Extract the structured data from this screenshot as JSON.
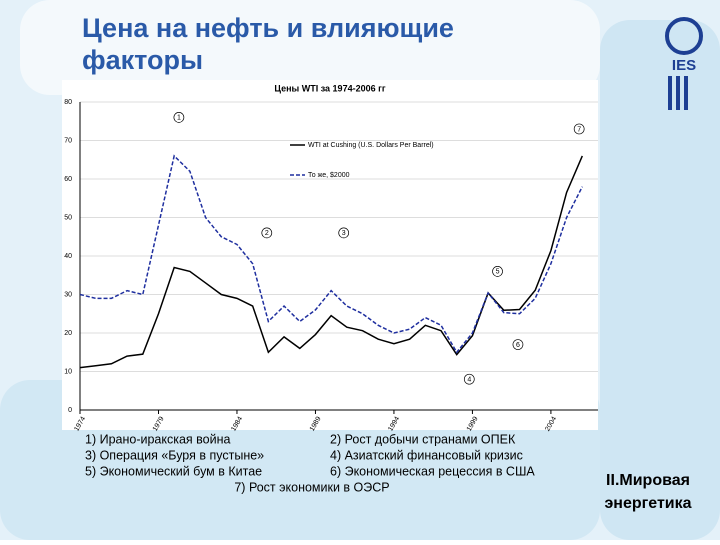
{
  "slide": {
    "title_lines": [
      "Цена на нефть и влияющие",
      "факторы"
    ],
    "logo": "IES",
    "side_lines": [
      "II.Мировая",
      "энергетика"
    ],
    "notes": [
      "1) Ирано-иракская война",
      "2) Рост добычи странами ОПЕК",
      "3) Операция «Буря в пустыне»",
      "4) Азиатский финансовый кризис",
      "5) Экономический бум в Китае",
      "6) Экономическая рецессия в США",
      "7) Рост экономики в ОЭСР"
    ]
  },
  "chart_data": {
    "type": "line",
    "title": "Цены WTI за 1974-2006 гг",
    "x": [
      1974,
      1975,
      1976,
      1977,
      1978,
      1979,
      1980,
      1981,
      1982,
      1983,
      1984,
      1985,
      1986,
      1987,
      1988,
      1989,
      1990,
      1991,
      1992,
      1993,
      1994,
      1995,
      1996,
      1997,
      1998,
      1999,
      2000,
      2001,
      2002,
      2003,
      2004,
      2005,
      2006
    ],
    "series": [
      {
        "name": "WTI at Cushing (U.S. Dollars Per Barrel)",
        "color": "#000000",
        "style": "solid",
        "values": [
          11,
          11.5,
          12,
          14,
          14.5,
          25,
          37,
          36,
          33,
          30,
          29,
          27,
          15,
          19,
          16,
          19.6,
          24.5,
          21.5,
          20.6,
          18.4,
          17.2,
          18.4,
          22,
          20.6,
          14.4,
          19.3,
          30.4,
          25.9,
          26.1,
          31.1,
          41.4,
          56.5,
          66
        ]
      },
      {
        "name": "То же, $2000",
        "color": "#1f2f9f",
        "style": "dashed",
        "values": [
          30,
          29,
          29,
          31,
          30,
          48,
          66,
          62,
          50,
          45,
          43,
          38,
          23,
          27,
          23,
          26,
          31,
          27,
          25,
          22,
          20,
          21,
          24,
          22,
          15,
          20,
          30.4,
          25.3,
          25,
          29,
          38,
          50,
          58
        ]
      }
    ],
    "xlim": [
      1974,
      2007
    ],
    "xticks": [
      1974,
      1979,
      1984,
      1989,
      1994,
      1999,
      2004
    ],
    "ylim": [
      0,
      80
    ],
    "yticks": [
      0,
      10,
      20,
      30,
      40,
      50,
      60,
      70,
      80
    ],
    "grid": true,
    "annotations": [
      {
        "label": "1",
        "x": 1980.3,
        "y": 76
      },
      {
        "label": "2",
        "x": 1985.9,
        "y": 46
      },
      {
        "label": "3",
        "x": 1990.8,
        "y": 46
      },
      {
        "label": "4",
        "x": 1998.8,
        "y": 8
      },
      {
        "label": "5",
        "x": 2000.6,
        "y": 36
      },
      {
        "label": "6",
        "x": 2001.9,
        "y": 17
      },
      {
        "label": "7",
        "x": 2005.8,
        "y": 73
      }
    ]
  }
}
